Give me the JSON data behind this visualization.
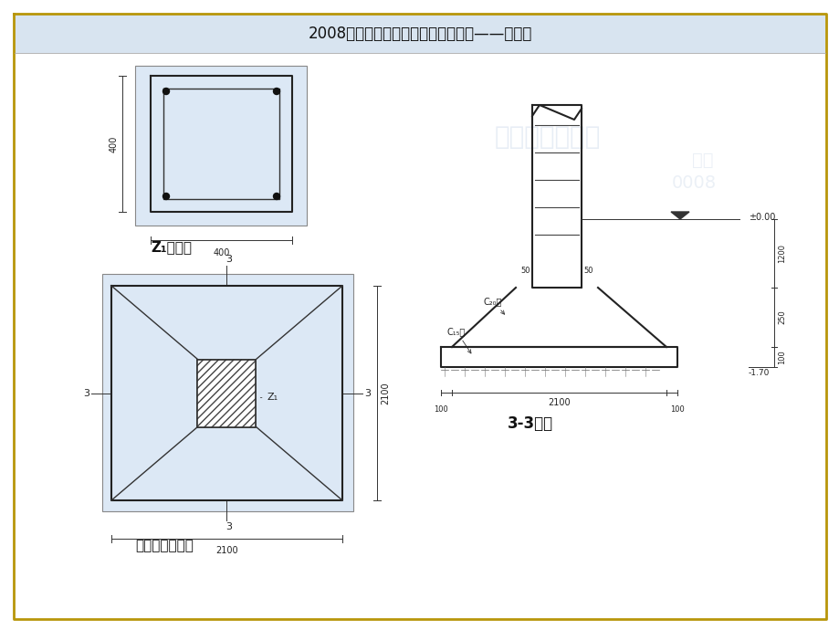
{
  "title": "2008年全国建设工程造价员资格考试——案例一",
  "title_fontsize": 12,
  "bg_color": "#ffffff",
  "header_bg": "#d8e4f0",
  "border_top_color": "#c8a000",
  "border_bot_color": "#c8a000",
  "label_z1_cross": "Z₁柱断面",
  "label_foundation": "独立基础平面图",
  "label_section": "3-3剖面",
  "diagram_bg": "#dce8f5"
}
